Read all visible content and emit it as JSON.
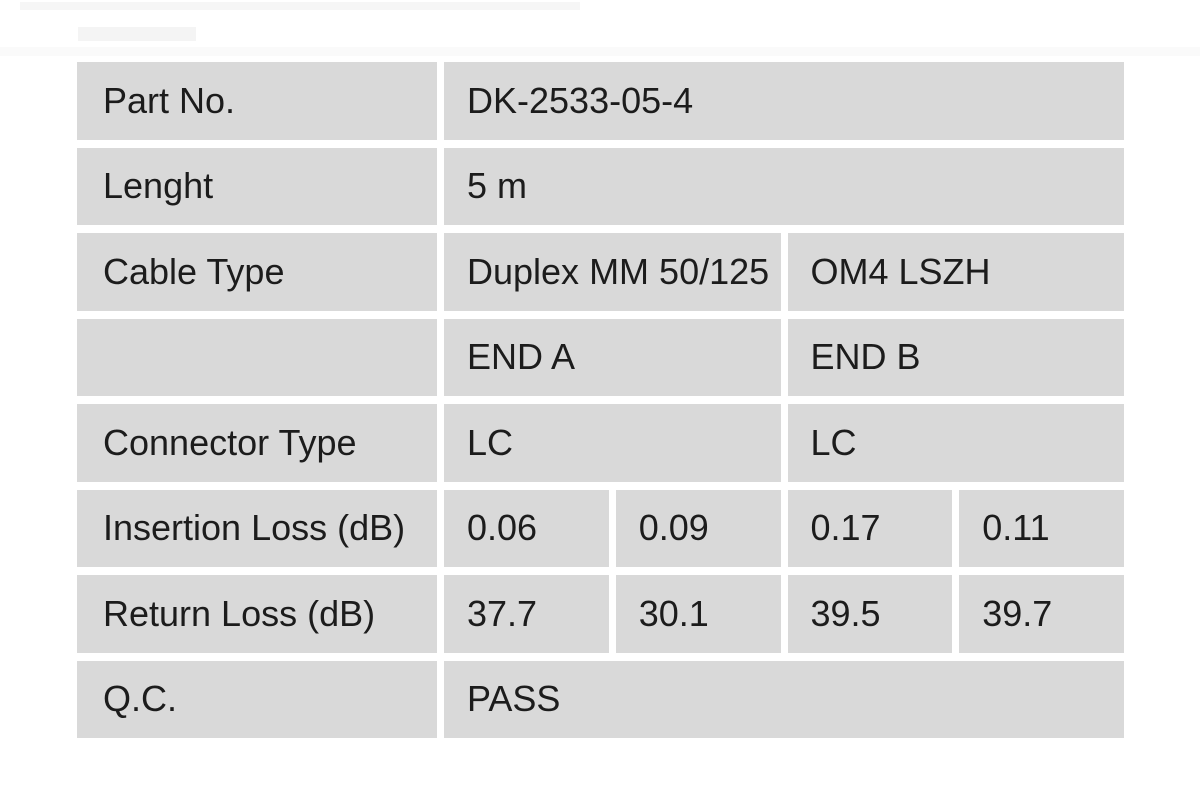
{
  "page": {
    "background_color": "#ffffff",
    "cell_color": "#d9d9d9",
    "text_color": "#1c1c1c"
  },
  "table": {
    "rows": [
      {
        "cells": [
          {
            "text": "Part No.",
            "span": 1
          },
          {
            "text": "DK-2533-05-4",
            "span": 4
          }
        ]
      },
      {
        "cells": [
          {
            "text": "Lenght",
            "span": 1
          },
          {
            "text": "5 m",
            "span": 4
          }
        ]
      },
      {
        "cells": [
          {
            "text": "Cable Type",
            "span": 1
          },
          {
            "text": "Duplex MM 50/125",
            "span": 2
          },
          {
            "text": "OM4 LSZH",
            "span": 2
          }
        ]
      },
      {
        "cells": [
          {
            "text": "",
            "span": 1
          },
          {
            "text": "END A",
            "span": 2
          },
          {
            "text": "END B",
            "span": 2
          }
        ]
      },
      {
        "cells": [
          {
            "text": "Connector Type",
            "span": 1
          },
          {
            "text": "LC",
            "span": 2
          },
          {
            "text": "LC",
            "span": 2
          }
        ]
      },
      {
        "cells": [
          {
            "text": "Insertion Loss (dB)",
            "span": 1
          },
          {
            "text": "0.06",
            "span": 1
          },
          {
            "text": "0.09",
            "span": 1
          },
          {
            "text": "0.17",
            "span": 1
          },
          {
            "text": "0.11",
            "span": 1
          }
        ]
      },
      {
        "cells": [
          {
            "text": "Return Loss (dB)",
            "span": 1
          },
          {
            "text": "37.7",
            "span": 1
          },
          {
            "text": "30.1",
            "span": 1
          },
          {
            "text": "39.5",
            "span": 1
          },
          {
            "text": "39.7",
            "span": 1
          }
        ]
      },
      {
        "cells": [
          {
            "text": "Q.C.",
            "span": 1
          },
          {
            "text": "PASS",
            "span": 4
          }
        ]
      }
    ]
  }
}
